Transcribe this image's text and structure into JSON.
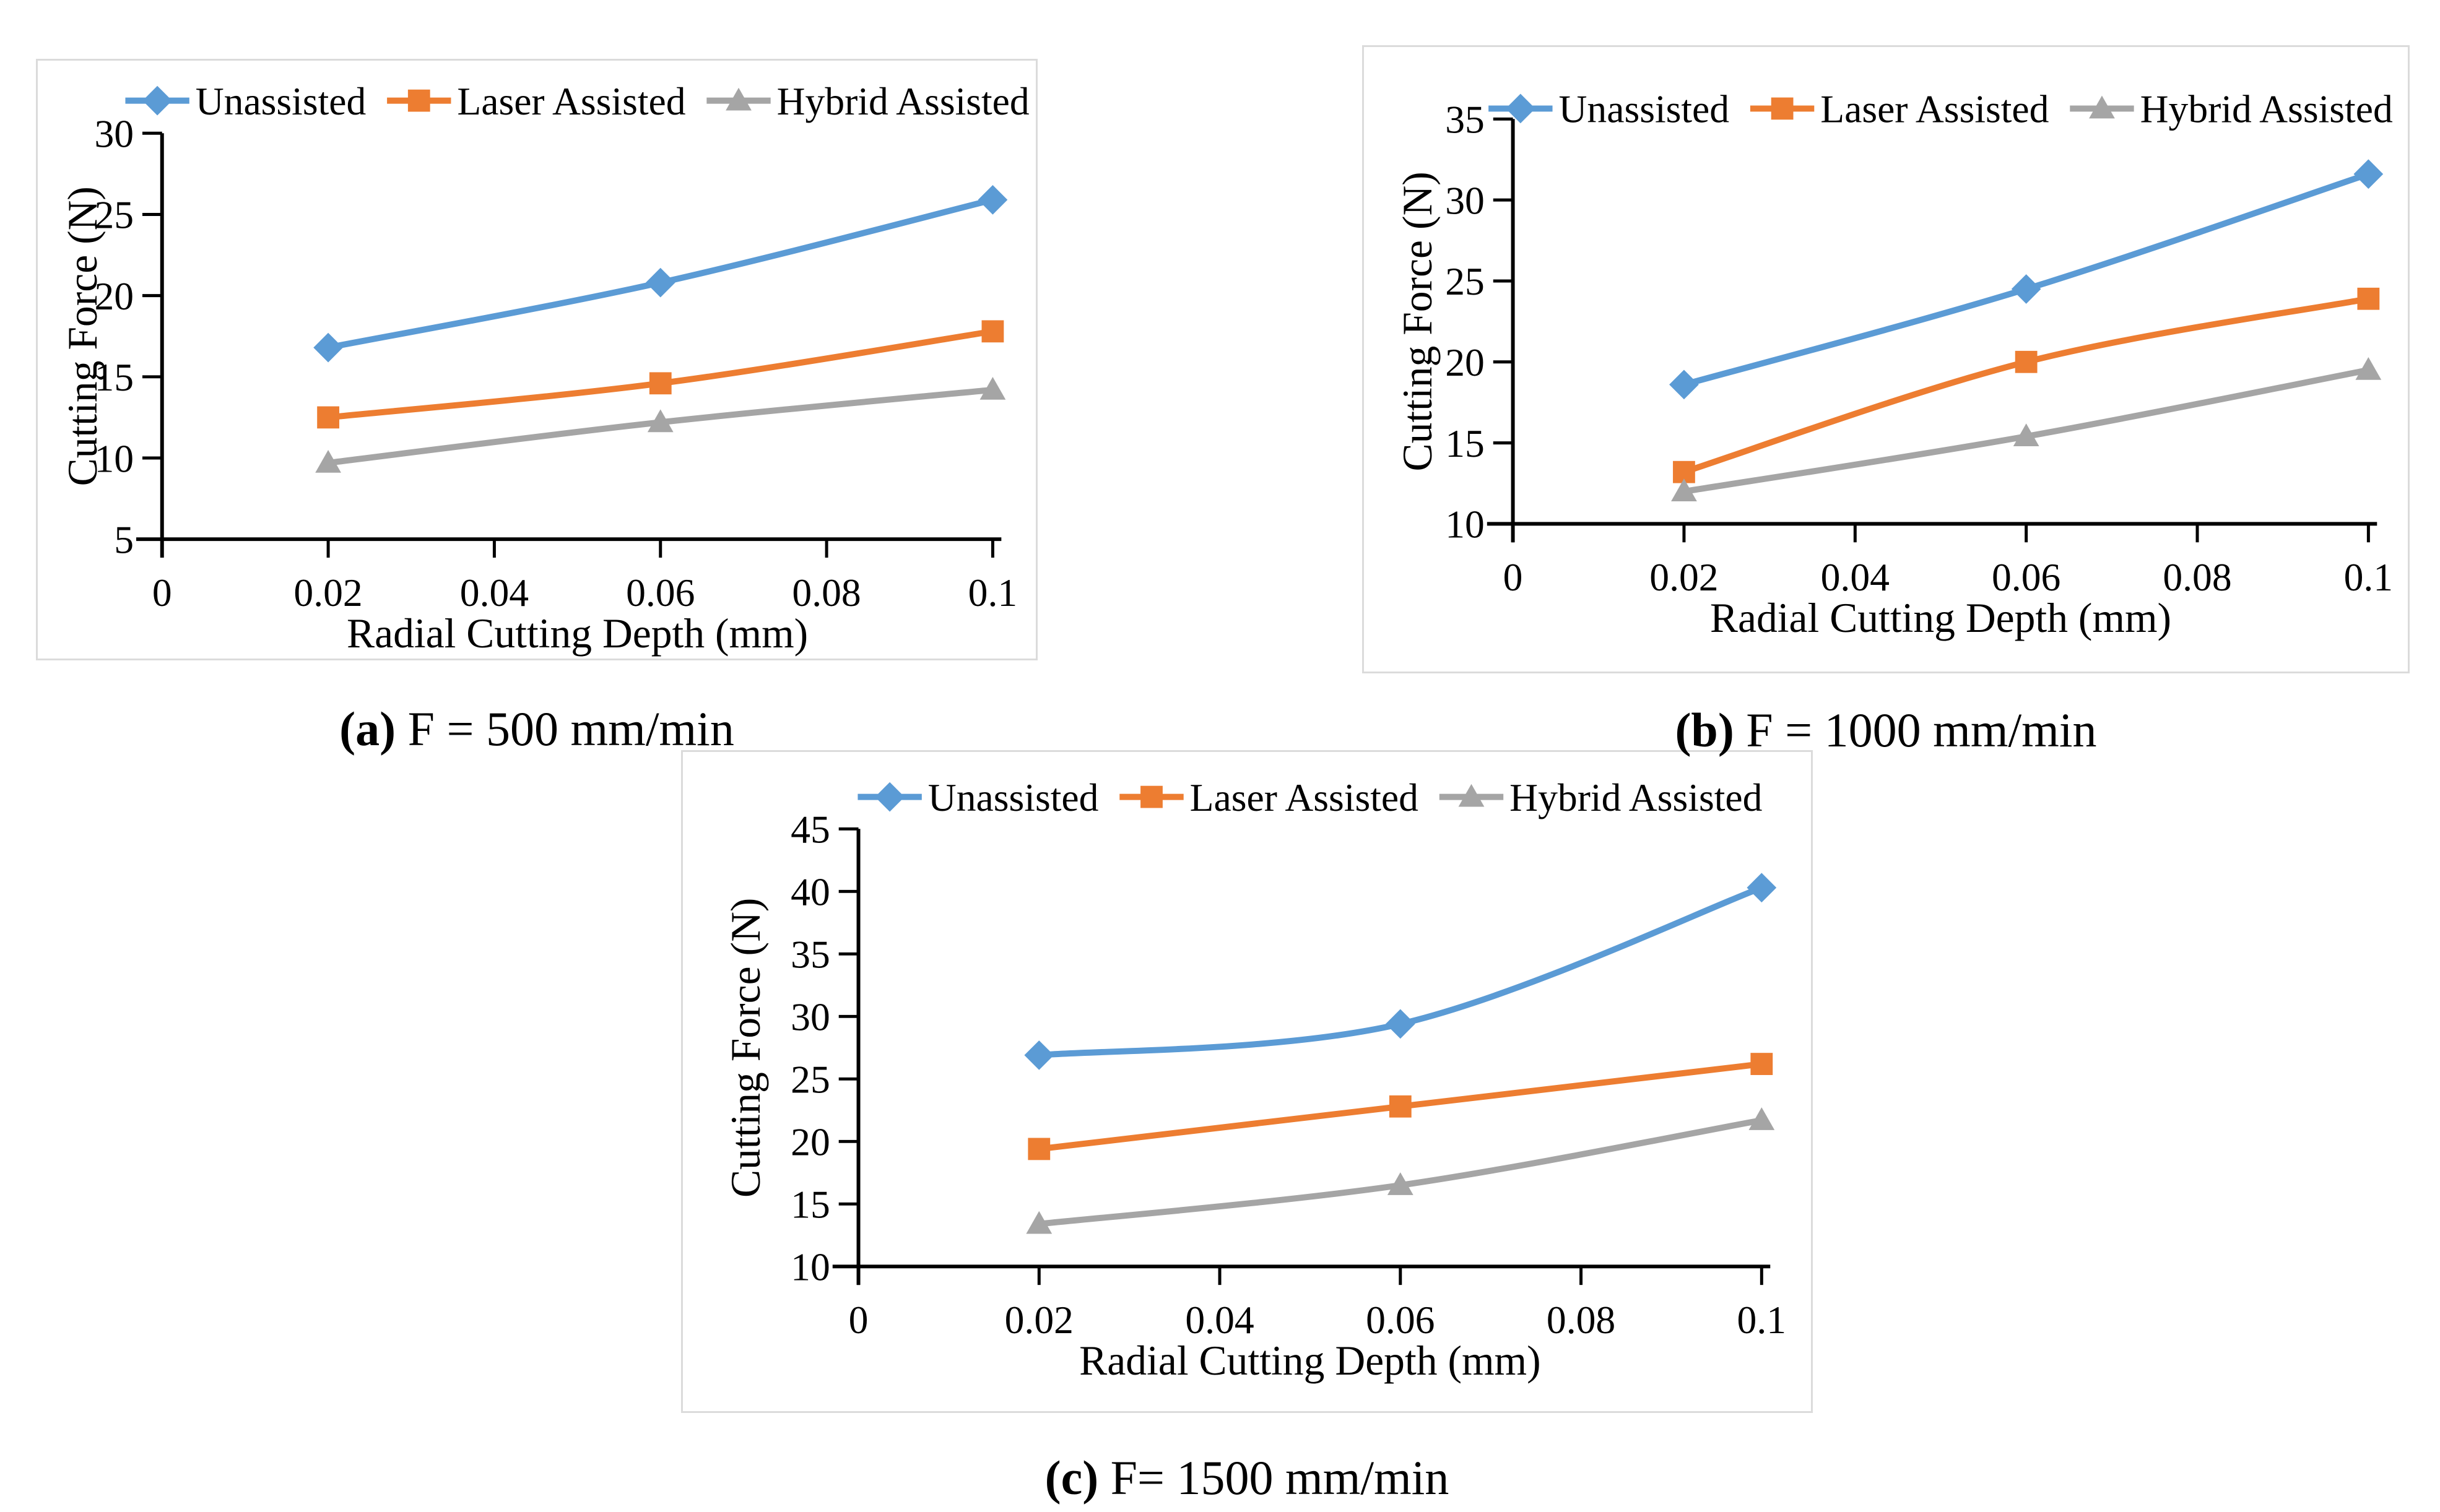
{
  "figure": {
    "background": "#ffffff",
    "panel_border_color": "#dbdbdb",
    "axis_color": "#000000",
    "text_color": "#000000"
  },
  "chart_data": [
    {
      "type": "line",
      "caption_bold": "(a)",
      "caption_rest": " F = 500 mm/min",
      "xlabel": "Radial Cutting Depth (mm)",
      "ylabel": "Cutting Force (N)",
      "x": [
        0.02,
        0.06,
        0.1
      ],
      "x_axis_ticks": [
        0,
        0.02,
        0.04,
        0.06,
        0.08,
        0.1
      ],
      "x_tick_labels": [
        "0",
        "0.02",
        "0.04",
        "0.06",
        "0.08",
        "0.1"
      ],
      "xlim": [
        0,
        0.1
      ],
      "ylim": [
        5,
        30
      ],
      "y_ticks": [
        5,
        10,
        15,
        20,
        25,
        30
      ],
      "grid": false,
      "legend_position": "top",
      "series": [
        {
          "name": "Unassisted",
          "marker": "diamond",
          "color": "#5B9BD5",
          "values": [
            16.8,
            20.8,
            25.9
          ]
        },
        {
          "name": "Laser Assisted",
          "marker": "square",
          "color": "#ED7D31",
          "values": [
            12.5,
            14.6,
            17.8
          ]
        },
        {
          "name": "Hybrid Assisted",
          "marker": "triangle",
          "color": "#A5A5A5",
          "values": [
            9.7,
            12.2,
            14.2
          ]
        }
      ]
    },
    {
      "type": "line",
      "caption_bold": "(b)",
      "caption_rest": " F = 1000 mm/min",
      "xlabel": "Radial Cutting Depth (mm)",
      "ylabel": "Cutting Force (N)",
      "x": [
        0.02,
        0.06,
        0.1
      ],
      "x_axis_ticks": [
        0,
        0.02,
        0.04,
        0.06,
        0.08,
        0.1
      ],
      "x_tick_labels": [
        "0",
        "0.02",
        "0.04",
        "0.06",
        "0.08",
        "0.1"
      ],
      "xlim": [
        0,
        0.1
      ],
      "ylim": [
        10,
        35
      ],
      "y_ticks": [
        10,
        15,
        20,
        25,
        30,
        35
      ],
      "grid": false,
      "legend_position": "top",
      "series": [
        {
          "name": "Unassisted",
          "marker": "diamond",
          "color": "#5B9BD5",
          "values": [
            18.6,
            24.5,
            31.6
          ]
        },
        {
          "name": "Laser Assisted",
          "marker": "square",
          "color": "#ED7D31",
          "values": [
            13.2,
            20.0,
            23.9
          ]
        },
        {
          "name": "Hybrid Assisted",
          "marker": "triangle",
          "color": "#A5A5A5",
          "values": [
            12.0,
            15.4,
            19.5
          ]
        }
      ]
    },
    {
      "type": "line",
      "caption_bold": "(c)",
      "caption_rest": " F= 1500 mm/min",
      "xlabel": "Radial Cutting Depth (mm)",
      "ylabel": "Cutting Force (N)",
      "x": [
        0.02,
        0.06,
        0.1
      ],
      "x_axis_ticks": [
        0,
        0.02,
        0.04,
        0.06,
        0.08,
        0.1
      ],
      "x_tick_labels": [
        "0",
        "0.02",
        "0.04",
        "0.06",
        "0.08",
        "0.1"
      ],
      "xlim": [
        0,
        0.1
      ],
      "ylim": [
        10,
        45
      ],
      "y_ticks": [
        10,
        15,
        20,
        25,
        30,
        35,
        40,
        45
      ],
      "grid": false,
      "legend_position": "top",
      "series": [
        {
          "name": "Unassisted",
          "marker": "diamond",
          "color": "#5B9BD5",
          "values": [
            26.9,
            29.4,
            40.3
          ]
        },
        {
          "name": "Laser Assisted",
          "marker": "square",
          "color": "#ED7D31",
          "values": [
            19.4,
            22.8,
            26.2
          ]
        },
        {
          "name": "Hybrid Assisted",
          "marker": "triangle",
          "color": "#A5A5A5",
          "values": [
            13.4,
            16.5,
            21.7
          ]
        }
      ]
    }
  ]
}
